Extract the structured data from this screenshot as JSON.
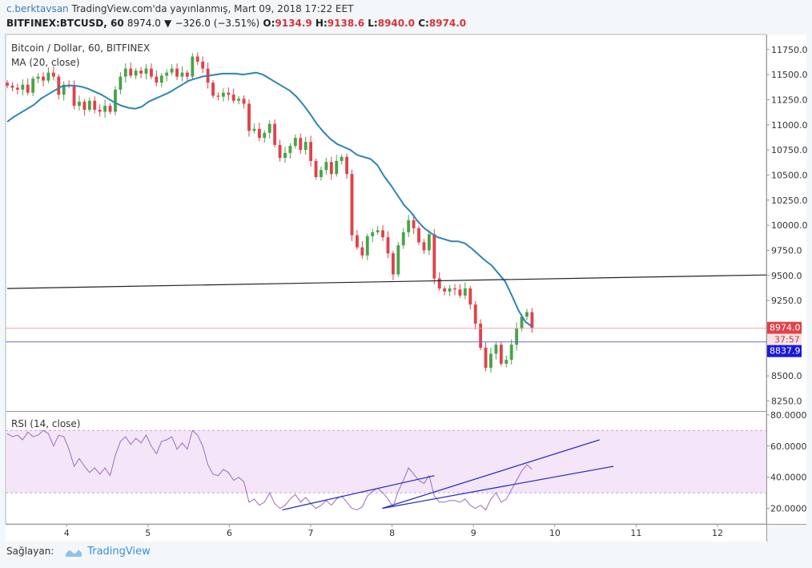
{
  "header": {
    "user": "c.berktavsan",
    "published": "TradingView.com'da yayınlanmış, Mart 09, 2018 17:22 EET",
    "symbol": "BITFINEX:BTCUSD, 60",
    "last": "8974.0",
    "change": "−326.0 (−3.51%)",
    "o_label": "O:",
    "o": "9134.9",
    "h_label": "H:",
    "h": "9138.6",
    "l_label": "L:",
    "l": "8940.0",
    "c_label": "C:",
    "c": "8974.0"
  },
  "footer": {
    "label": "Sağlayan:",
    "brand": "TradingView"
  },
  "colors": {
    "up": "#4aa34a",
    "down": "#e0424b",
    "ma": "#2d84b5",
    "rsi": "#9b6dbd",
    "trend": "#2b32c6",
    "bg": "#ffffff"
  },
  "chart_data": [
    {
      "type": "candlestick",
      "title": "Bitcoin / Dollar, 60, BITFINEX",
      "indicator": "MA (20, close)",
      "ylim": [
        8150,
        11900
      ],
      "xlim": [
        3.25,
        12.6
      ],
      "y_ticks": [
        "11750.0",
        "11500.0",
        "11250.0",
        "11000.0",
        "10750.0",
        "10500.0",
        "10250.0",
        "10000.0",
        "9750.0",
        "9500.0",
        "9250.0",
        "9000.0",
        "8750.0",
        "8500.0",
        "8250.0"
      ],
      "x_ticks": [
        "4",
        "5",
        "6",
        "7",
        "8",
        "9",
        "10",
        "11",
        "12"
      ],
      "grid": false,
      "last_price_label": "8974.0",
      "countdown_label": "37:57",
      "line_price_label": "8837.9",
      "last_price": 8974.0,
      "line_price": 8837.9,
      "horizontal_trendline": {
        "x": [
          3.27,
          12.6
        ],
        "y": [
          9370,
          9505
        ]
      },
      "candles_close": [
        11390,
        11370,
        11350,
        11400,
        11320,
        11460,
        11480,
        11440,
        11520,
        11480,
        11300,
        11400,
        11390,
        11190,
        11230,
        11150,
        11240,
        11150,
        11130,
        11190,
        11130,
        11350,
        11480,
        11560,
        11490,
        11540,
        11510,
        11560,
        11480,
        11420,
        11490,
        11520,
        11560,
        11480,
        11520,
        11480,
        11680,
        11630,
        11560,
        11420,
        11290,
        11280,
        11320,
        11300,
        11240,
        11260,
        11210,
        10940,
        10960,
        10870,
        10920,
        11010,
        10800,
        10670,
        10720,
        10790,
        10870,
        10750,
        10830,
        10640,
        10480,
        10550,
        10630,
        10510,
        10640,
        10680,
        10510,
        9900,
        9780,
        9700,
        9890,
        9930,
        9950,
        9880,
        9720,
        9510,
        9800,
        9930,
        10050,
        9970,
        9830,
        9750,
        9910,
        9470,
        9370,
        9340,
        9370,
        9360,
        9300,
        9370,
        9210,
        9020,
        8780,
        8580,
        8720,
        8810,
        8620,
        8660,
        8810,
        8970,
        9090,
        9134,
        8974
      ],
      "ma_close": [
        11030,
        11080,
        11120,
        11160,
        11200,
        11260,
        11300,
        11340,
        11380,
        11390,
        11390,
        11380,
        11360,
        11330,
        11300,
        11260,
        11220,
        11190,
        11170,
        11160,
        11180,
        11230,
        11260,
        11290,
        11320,
        11360,
        11400,
        11440,
        11460,
        11480,
        11490,
        11500,
        11510,
        11510,
        11510,
        11500,
        11510,
        11520,
        11500,
        11460,
        11420,
        11380,
        11340,
        11280,
        11200,
        11110,
        11010,
        10930,
        10860,
        10810,
        10780,
        10750,
        10700,
        10680,
        10660,
        10600,
        10490,
        10400,
        10300,
        10200,
        10130,
        10040,
        9970,
        9920,
        9880,
        9860,
        9840,
        9840,
        9820,
        9770,
        9710,
        9650,
        9600,
        9520,
        9440,
        9300,
        9150,
        9040,
        8990
      ]
    },
    {
      "type": "line",
      "title": "RSI (14, close)",
      "ylim": [
        10,
        82
      ],
      "y_ticks": [
        "80.0000",
        "60.0000",
        "40.0000",
        "20.0000"
      ],
      "band": [
        30,
        70
      ],
      "trendlines": [
        {
          "x": [
            6.65,
            8.52
          ],
          "y": [
            19,
            41
          ]
        },
        {
          "x": [
            7.88,
            10.55
          ],
          "y": [
            20,
            64
          ]
        },
        {
          "x": [
            7.88,
            10.72
          ],
          "y": [
            20,
            47
          ]
        }
      ],
      "values": [
        68,
        66,
        67,
        64,
        69,
        66,
        67,
        70,
        68,
        60,
        67,
        66,
        58,
        47,
        52,
        47,
        43,
        46,
        42,
        46,
        41,
        54,
        63,
        66,
        61,
        65,
        62,
        67,
        60,
        55,
        63,
        64,
        66,
        58,
        62,
        58,
        70,
        67,
        60,
        48,
        42,
        41,
        45,
        43,
        38,
        40,
        37,
        24,
        26,
        22,
        24,
        30,
        23,
        20,
        22,
        26,
        29,
        24,
        27,
        23,
        20,
        22,
        25,
        22,
        26,
        28,
        24,
        20,
        19,
        21,
        28,
        31,
        33,
        30,
        26,
        21,
        31,
        38,
        46,
        42,
        38,
        36,
        41,
        28,
        24,
        24,
        25,
        25,
        24,
        26,
        22,
        20,
        22,
        19,
        26,
        30,
        24,
        26,
        32,
        38,
        44,
        48,
        45
      ]
    }
  ]
}
